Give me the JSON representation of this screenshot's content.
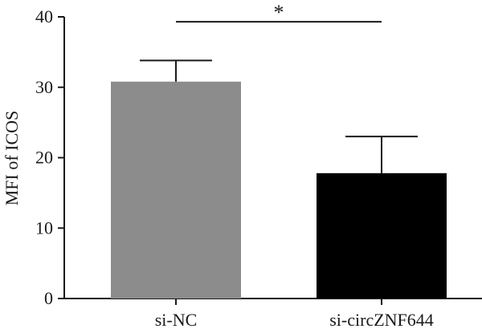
{
  "chart_data": {
    "type": "bar",
    "title": "",
    "xlabel": "",
    "ylabel": "MFI of ICOS",
    "ylim": [
      0,
      40
    ],
    "yticks": [
      0,
      10,
      20,
      30,
      40
    ],
    "grid": false,
    "legend": "none",
    "categories": [
      "si-NC",
      "si-circZNF644"
    ],
    "values": [
      30.8,
      17.8
    ],
    "errors": [
      3.0,
      5.2
    ],
    "bar_colors": [
      "#8c8c8c",
      "#000000"
    ],
    "significance": {
      "from": 0,
      "to": 1,
      "label": "*",
      "y": 39.3
    }
  }
}
